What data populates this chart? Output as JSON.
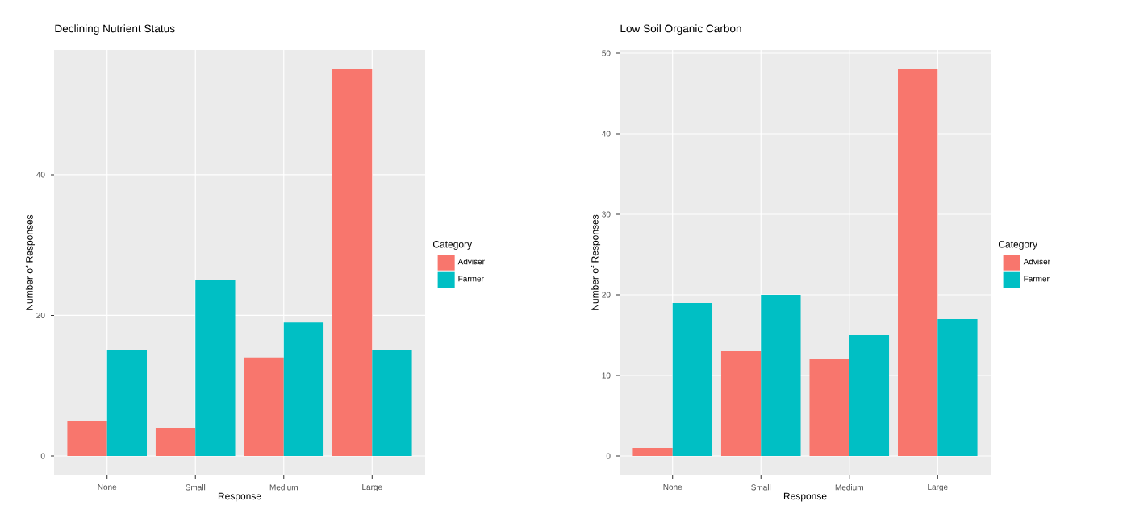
{
  "chart_data": [
    {
      "type": "bar",
      "title": "Declining Nutrient Status",
      "xlabel": "Response",
      "ylabel": "Number of Responses",
      "legend_title": "Category",
      "categories": [
        "None",
        "Small",
        "Medium",
        "Large"
      ],
      "series": [
        {
          "name": "Adviser",
          "color": "#f8766d",
          "values": [
            5,
            4,
            14,
            55
          ]
        },
        {
          "name": "Farmer",
          "color": "#00bfc4",
          "values": [
            15,
            25,
            19,
            15
          ]
        }
      ],
      "ylim": [
        -2.75,
        57.75
      ],
      "yticks": [
        0,
        20,
        40
      ],
      "grid": true,
      "legend": "right"
    },
    {
      "type": "bar",
      "title": "Low Soil Organic Carbon",
      "xlabel": "Response",
      "ylabel": "Number of Responses",
      "legend_title": "Category",
      "categories": [
        "None",
        "Small",
        "Medium",
        "Large"
      ],
      "series": [
        {
          "name": "Adviser",
          "color": "#f8766d",
          "values": [
            1,
            13,
            12,
            48
          ]
        },
        {
          "name": "Farmer",
          "color": "#00bfc4",
          "values": [
            19,
            20,
            15,
            17
          ]
        }
      ],
      "ylim": [
        -2.4,
        50.4
      ],
      "yticks": [
        0,
        10,
        20,
        30,
        40,
        50
      ],
      "grid": true,
      "legend": "right"
    }
  ]
}
